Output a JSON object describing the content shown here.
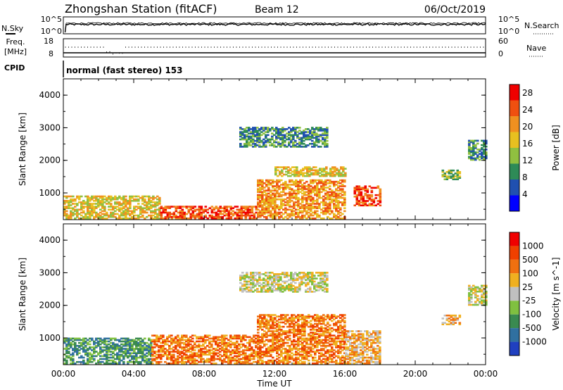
{
  "header": {
    "station": "Zhongshan Station (fitACF)",
    "beam": "Beam 12",
    "date": "06/Oct/2019"
  },
  "noise_panel": {
    "left_label": "N.Sky",
    "left_ticks": [
      "10^5",
      "10^0"
    ],
    "right_ticks": [
      "10^5",
      "10^0"
    ],
    "right_label": "N.Search"
  },
  "freq_panel": {
    "left_label_top": "Freq.",
    "left_label_bottom": "[MHz]",
    "left_ticks": [
      "18",
      "8"
    ],
    "right_ticks": [
      "60",
      "0"
    ],
    "right_label": "Nave"
  },
  "cpid_panel": {
    "label": "CPID",
    "text": "normal (fast stereo) 153"
  },
  "chart_data": [
    {
      "type": "heatmap",
      "title": "",
      "ylabel": "Slant Range [km]",
      "xlim_hours": [
        0,
        24
      ],
      "ylim": [
        180,
        4500
      ],
      "yticks": [
        "1000",
        "2000",
        "3000",
        "4000"
      ],
      "colorbar": {
        "label": "Power [dB]",
        "ticks": [
          "4",
          "8",
          "12",
          "16",
          "20",
          "24",
          "28"
        ],
        "range": [
          0,
          30
        ],
        "colors": [
          "#0000ff",
          "#2050b0",
          "#2e8b57",
          "#90c040",
          "#e8c020",
          "#f09020",
          "#f05010",
          "#f00000"
        ]
      },
      "regions": [
        {
          "x": [
            0.0,
            5.5
          ],
          "y": [
            200,
            900
          ],
          "level": 4
        },
        {
          "x": [
            5.5,
            11.0
          ],
          "y": [
            200,
            600
          ],
          "level": 6
        },
        {
          "x": [
            11.0,
            16.0
          ],
          "y": [
            200,
            1400
          ],
          "level": 5
        },
        {
          "x": [
            12.0,
            16.0
          ],
          "y": [
            1500,
            1800
          ],
          "level": 4
        },
        {
          "x": [
            10.0,
            15.0
          ],
          "y": [
            2400,
            3000
          ],
          "level": 2
        },
        {
          "x": [
            16.5,
            18.0
          ],
          "y": [
            600,
            1200
          ],
          "level": 6
        },
        {
          "x": [
            21.5,
            22.5
          ],
          "y": [
            1400,
            1700
          ],
          "level": 3
        },
        {
          "x": [
            23.0,
            24.0
          ],
          "y": [
            2000,
            2600
          ],
          "level": 2
        }
      ]
    },
    {
      "type": "heatmap",
      "title": "",
      "ylabel": "Slant Range [km]",
      "xlabel": "Time UT",
      "xlim_hours": [
        0,
        24
      ],
      "ylim": [
        180,
        4500
      ],
      "yticks": [
        "1000",
        "2000",
        "3000",
        "4000"
      ],
      "xticks": [
        "00:00",
        "04:00",
        "08:00",
        "12:00",
        "16:00",
        "20:00",
        "00:00"
      ],
      "colorbar": {
        "label": "Velocity [m s^-1]",
        "ticks": [
          "1000",
          "500",
          "100",
          "25",
          "-25",
          "-100",
          "-500",
          "-1000"
        ],
        "colors": [
          "#2040c0",
          "#3070a0",
          "#3a8a50",
          "#80c040",
          "#c0c0c0",
          "#f0b020",
          "#f07010",
          "#f04000",
          "#f00000"
        ]
      },
      "regions": [
        {
          "x": [
            0.0,
            5.0
          ],
          "y": [
            200,
            1000
          ],
          "level": 2
        },
        {
          "x": [
            5.0,
            11.0
          ],
          "y": [
            200,
            1100
          ],
          "level": 6
        },
        {
          "x": [
            11.0,
            16.0
          ],
          "y": [
            200,
            1700
          ],
          "level": 6
        },
        {
          "x": [
            10.0,
            15.0
          ],
          "y": [
            2400,
            3000
          ],
          "level": 4
        },
        {
          "x": [
            16.0,
            18.0
          ],
          "y": [
            200,
            1200
          ],
          "level": 5
        },
        {
          "x": [
            21.5,
            22.5
          ],
          "y": [
            1400,
            1700
          ],
          "level": 5
        },
        {
          "x": [
            23.0,
            24.0
          ],
          "y": [
            2000,
            2600
          ],
          "level": 4
        }
      ]
    }
  ]
}
